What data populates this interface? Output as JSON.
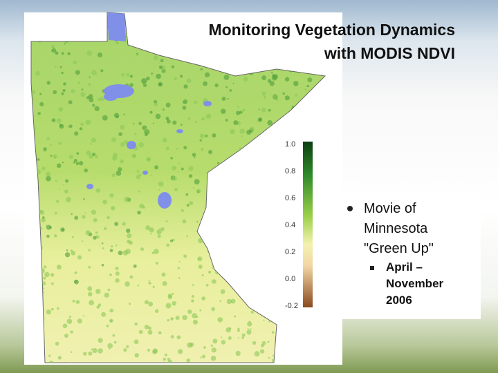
{
  "title": [
    "Monitoring Vegetation Dynamics",
    "with MODIS NDVI"
  ],
  "colorbar": {
    "labels": [
      "1.0",
      "0.8",
      "0.6",
      "0.4",
      "0.2",
      "0.0",
      "-0.2"
    ]
  },
  "bullets": [
    {
      "text": "Movie of Minnesota \"Green Up\"",
      "sub": [
        "April – November 2006"
      ]
    }
  ]
}
